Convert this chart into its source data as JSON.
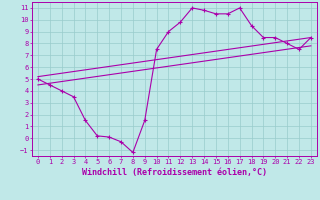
{
  "line1_x": [
    0,
    1,
    2,
    3,
    4,
    5,
    6,
    7,
    8,
    9,
    10,
    11,
    12,
    13,
    14,
    15,
    16,
    17,
    18,
    19,
    20,
    21,
    22,
    23
  ],
  "line1_y": [
    5.0,
    4.5,
    4.0,
    3.5,
    1.5,
    0.2,
    0.1,
    -0.3,
    -1.2,
    1.5,
    7.5,
    9.0,
    9.8,
    11.0,
    10.8,
    10.5,
    10.5,
    11.0,
    9.5,
    8.5,
    8.5,
    8.0,
    7.5,
    8.5
  ],
  "line2_x": [
    0,
    23
  ],
  "line2_y": [
    5.2,
    8.5
  ],
  "line3_x": [
    0,
    23
  ],
  "line3_y": [
    4.5,
    7.8
  ],
  "line_color": "#aa00aa",
  "bg_color": "#c0e8e8",
  "grid_color": "#99cccc",
  "xlabel": "Windchill (Refroidissement éolien,°C)",
  "xlim": [
    -0.5,
    23.5
  ],
  "ylim": [
    -1.5,
    11.5
  ],
  "xticks": [
    0,
    1,
    2,
    3,
    4,
    5,
    6,
    7,
    8,
    9,
    10,
    11,
    12,
    13,
    14,
    15,
    16,
    17,
    18,
    19,
    20,
    21,
    22,
    23
  ],
  "yticks": [
    -1,
    0,
    1,
    2,
    3,
    4,
    5,
    6,
    7,
    8,
    9,
    10,
    11
  ],
  "tick_fontsize": 5.0,
  "xlabel_fontsize": 6.0
}
